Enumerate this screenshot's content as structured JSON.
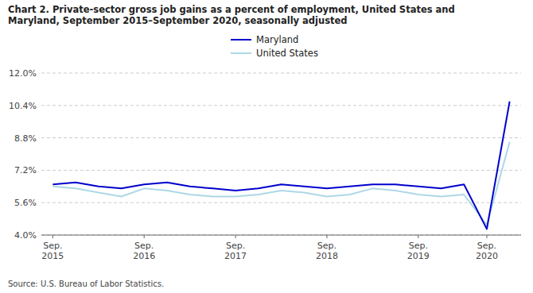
{
  "chart_data": {
    "type": "line",
    "title": "Chart 2. Private-sector gross job gains as a percent of employment, United States and\nMaryland, September 2015–September 2020, seasonally adjusted",
    "source": "Source: U.S. Bureau of Labor Statistics.",
    "categories": [
      "Sep.\n2015",
      null,
      null,
      null,
      "Sep.\n2016",
      null,
      null,
      null,
      "Sep.\n2017",
      null,
      null,
      null,
      "Sep.\n2018",
      null,
      null,
      null,
      "Sep.\n2019",
      null,
      null,
      "Sep.\n2020",
      null
    ],
    "series": [
      {
        "name": "Maryland",
        "color": "#0000CD",
        "values": [
          6.5,
          6.6,
          6.4,
          6.3,
          6.5,
          6.6,
          6.4,
          6.3,
          6.2,
          6.3,
          6.5,
          6.4,
          6.3,
          6.4,
          6.5,
          6.5,
          6.4,
          6.3,
          6.5,
          4.3,
          10.6
        ]
      },
      {
        "name": "United States",
        "color": "#ADD8E6",
        "values": [
          6.4,
          6.3,
          6.1,
          5.9,
          6.3,
          6.2,
          6.0,
          5.9,
          5.9,
          6.0,
          6.2,
          6.1,
          5.9,
          6.0,
          6.3,
          6.2,
          6.0,
          5.9,
          6.0,
          4.5,
          8.6
        ]
      }
    ],
    "ylim": [
      4.0,
      12.0
    ],
    "yticks": [
      {
        "value": 4.0,
        "label": "4.0%"
      },
      {
        "value": 5.6,
        "label": "5.6%"
      },
      {
        "value": 7.2,
        "label": "7.2%"
      },
      {
        "value": 8.8,
        "label": "8.8%"
      },
      {
        "value": 10.4,
        "label": "10.4%"
      },
      {
        "value": 12.0,
        "label": "12.0%"
      }
    ],
    "grid": true,
    "legend": "top"
  }
}
